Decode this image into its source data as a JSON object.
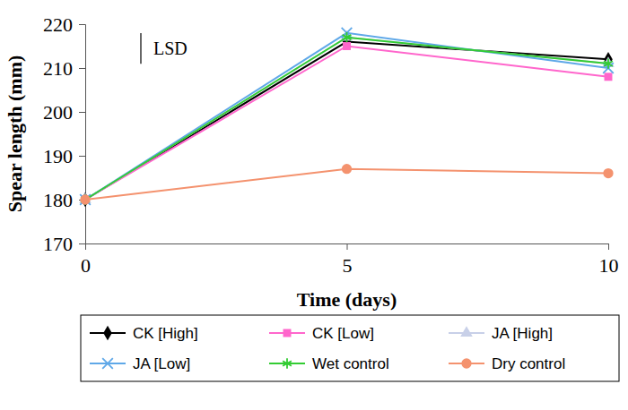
{
  "chart_data": {
    "type": "line",
    "x_label": "Time (days)",
    "y_label": "Spear length (mm)",
    "x": [
      0,
      5,
      10
    ],
    "xlim": [
      0,
      10
    ],
    "xticks": [
      0,
      5,
      10
    ],
    "ylim": [
      170,
      220
    ],
    "yticks": [
      170,
      180,
      190,
      200,
      210,
      220
    ],
    "grid": false,
    "legend": "bottom",
    "lsd": {
      "label": "LSD",
      "value": 7
    },
    "series": [
      {
        "name": "CK [High]",
        "color": "#000000",
        "marker": "diamond",
        "values": [
          180,
          216,
          212
        ]
      },
      {
        "name": "CK [Low]",
        "color": "#ff66cc",
        "marker": "square",
        "values": [
          180,
          215,
          208
        ]
      },
      {
        "name": "JA [High]",
        "color": "#c8d0e8",
        "marker": "triangle",
        "values": [
          180,
          217,
          211
        ]
      },
      {
        "name": "JA [Low]",
        "color": "#5fa8e8",
        "marker": "x",
        "values": [
          180,
          218,
          210
        ]
      },
      {
        "name": "Wet control",
        "color": "#33cc33",
        "marker": "asterisk",
        "values": [
          180,
          217,
          211
        ]
      },
      {
        "name": "Dry control",
        "color": "#f4926e",
        "marker": "circle",
        "values": [
          180,
          187,
          186
        ]
      }
    ]
  }
}
